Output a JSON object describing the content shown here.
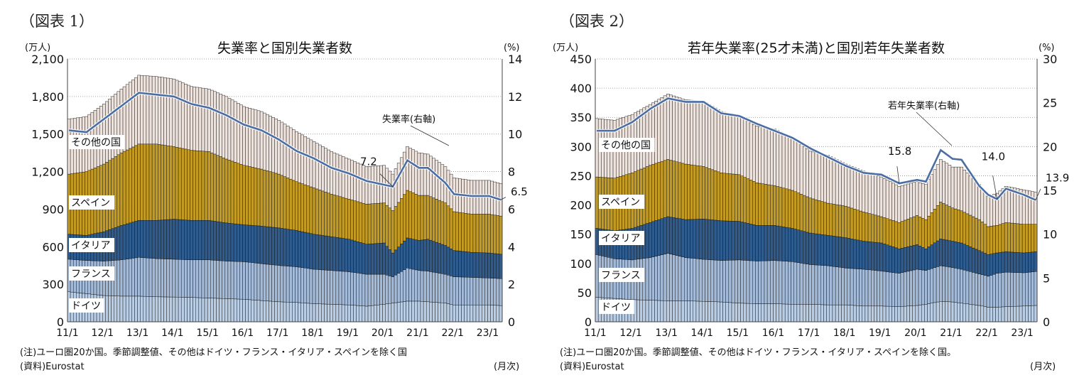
{
  "figures": [
    {
      "label": "（図表 1）",
      "note": "(注)ユーロ圏20か国。季節調整値、その他はドイツ・フランス・イタリア・スペインを除く国",
      "source": "(資料)Eurostat",
      "unit_x": "(月次)"
    },
    {
      "label": "（図表 2）",
      "note": "(注)ユーロ圏20か国。季節調整値、その他はドイツ・フランス・イタリア・スペインを除く国。",
      "source": "(資料)Eurostat",
      "unit_x": "(月次)"
    }
  ],
  "colors": {
    "ドイツ": "#b9cde5",
    "フランス": "#a3bad8",
    "イタリア": "#2f5c8f",
    "スペイン": "#c39a22",
    "その他の国": "#eee2dc",
    "rate": "#4a6da3"
  },
  "chart_data": [
    {
      "type": "bar",
      "stacked": true,
      "title": "失業率と国別失業者数",
      "ylabel": "(万人)",
      "y2label": "(%)",
      "ylim": [
        0,
        2100
      ],
      "yticks": [
        "0",
        "300",
        "600",
        "900",
        "1,200",
        "1,500",
        "1,800",
        "2,100"
      ],
      "y2lim": [
        0,
        14
      ],
      "y2ticks": [
        "0",
        "2",
        "4",
        "6",
        "8",
        "10",
        "12",
        "14"
      ],
      "xticks": [
        "11/1",
        "12/1",
        "13/1",
        "14/1",
        "15/1",
        "16/1",
        "17/1",
        "18/1",
        "19/1",
        "20/1",
        "21/1",
        "22/1",
        "23/1"
      ],
      "series_names": [
        "ドイツ",
        "フランス",
        "イタリア",
        "スペイン",
        "その他の国"
      ],
      "line_name": "失業率(右軸)",
      "annotations": [
        "7.2",
        "6.5"
      ],
      "x": [
        "2011-01",
        "2011-07",
        "2012-01",
        "2012-07",
        "2013-01",
        "2013-07",
        "2014-01",
        "2014-07",
        "2015-01",
        "2015-07",
        "2016-01",
        "2016-07",
        "2017-01",
        "2017-07",
        "2018-01",
        "2018-07",
        "2019-01",
        "2019-07",
        "2020-01",
        "2020-04",
        "2020-09",
        "2021-01",
        "2021-04",
        "2021-10",
        "2022-01",
        "2022-07",
        "2023-01",
        "2023-05"
      ],
      "series": [
        {
          "name": "ドイツ",
          "values": [
            240,
            225,
            210,
            205,
            205,
            200,
            198,
            195,
            190,
            185,
            180,
            170,
            160,
            155,
            145,
            140,
            135,
            125,
            140,
            150,
            165,
            165,
            160,
            150,
            135,
            135,
            135,
            130
          ]
        },
        {
          "name": "フランス",
          "values": [
            260,
            265,
            275,
            290,
            310,
            305,
            302,
            300,
            305,
            300,
            300,
            295,
            290,
            285,
            275,
            270,
            265,
            255,
            240,
            210,
            265,
            245,
            245,
            230,
            225,
            220,
            215,
            215
          ]
        },
        {
          "name": "イタリア",
          "values": [
            200,
            200,
            235,
            275,
            295,
            305,
            320,
            315,
            315,
            305,
            295,
            300,
            300,
            290,
            280,
            270,
            260,
            240,
            250,
            190,
            240,
            240,
            255,
            230,
            210,
            200,
            200,
            195
          ]
        },
        {
          "name": "スペイン",
          "values": [
            480,
            510,
            540,
            580,
            610,
            610,
            580,
            560,
            550,
            510,
            475,
            455,
            430,
            390,
            370,
            340,
            320,
            320,
            320,
            340,
            380,
            360,
            350,
            340,
            310,
            305,
            310,
            305
          ]
        },
        {
          "name": "その他の国",
          "values": [
            440,
            440,
            480,
            510,
            550,
            540,
            540,
            510,
            500,
            500,
            470,
            460,
            430,
            400,
            370,
            340,
            320,
            300,
            300,
            290,
            350,
            340,
            330,
            290,
            270,
            270,
            270,
            260
          ]
        }
      ],
      "line": {
        "name": "失業率(右軸)",
        "values": [
          10.2,
          10.1,
          10.8,
          11.5,
          12.2,
          12.1,
          12.0,
          11.6,
          11.4,
          11.0,
          10.5,
          10.2,
          9.7,
          9.1,
          8.7,
          8.2,
          7.9,
          7.5,
          7.3,
          7.2,
          8.6,
          8.2,
          8.2,
          7.4,
          6.8,
          6.7,
          6.7,
          6.5
        ]
      }
    },
    {
      "type": "bar",
      "stacked": true,
      "title": "若年失業率(25才未満)と国別若年失業者数",
      "ylabel": "(万人)",
      "y2label": "(%)",
      "ylim": [
        0,
        450
      ],
      "yticks": [
        "0",
        "50",
        "100",
        "150",
        "200",
        "250",
        "300",
        "350",
        "400",
        "450"
      ],
      "y2lim": [
        0,
        30
      ],
      "y2ticks": [
        "0",
        "5",
        "10",
        "15",
        "20",
        "25",
        "30"
      ],
      "xticks": [
        "11/1",
        "12/1",
        "13/1",
        "14/1",
        "15/1",
        "16/1",
        "17/1",
        "18/1",
        "19/1",
        "20/1",
        "21/1",
        "22/1",
        "23/1"
      ],
      "series_names": [
        "ドイツ",
        "フランス",
        "イタリア",
        "スペイン",
        "その他の国"
      ],
      "line_name": "若年失業率(右軸)",
      "annotations": [
        "15.8",
        "14.0",
        "13.9"
      ],
      "x": [
        "2011-01",
        "2011-07",
        "2012-01",
        "2012-07",
        "2013-01",
        "2013-07",
        "2014-01",
        "2014-07",
        "2015-01",
        "2015-07",
        "2016-01",
        "2016-07",
        "2017-01",
        "2017-07",
        "2018-01",
        "2018-07",
        "2019-01",
        "2019-07",
        "2020-01",
        "2020-04",
        "2020-09",
        "2021-01",
        "2021-04",
        "2021-10",
        "2022-01",
        "2022-04",
        "2022-07",
        "2023-01",
        "2023-05"
      ],
      "series": [
        {
          "name": "ドイツ",
          "values": [
            42,
            40,
            38,
            37,
            36,
            36,
            35,
            34,
            32,
            31,
            31,
            30,
            30,
            29,
            29,
            27,
            27,
            26,
            28,
            30,
            35,
            34,
            32,
            28,
            25,
            25,
            26,
            27,
            28
          ]
        },
        {
          "name": "フランス",
          "values": [
            73,
            68,
            68,
            73,
            81,
            74,
            72,
            71,
            74,
            73,
            74,
            73,
            68,
            67,
            63,
            63,
            60,
            57,
            62,
            58,
            61,
            59,
            58,
            54,
            53,
            58,
            59,
            57,
            58
          ]
        },
        {
          "name": "イタリア",
          "values": [
            45,
            48,
            54,
            60,
            63,
            65,
            69,
            68,
            66,
            61,
            60,
            57,
            54,
            52,
            52,
            48,
            48,
            42,
            42,
            37,
            46,
            45,
            45,
            40,
            37,
            35,
            35,
            34,
            34
          ]
        },
        {
          "name": "スペイン",
          "values": [
            88,
            90,
            95,
            98,
            98,
            95,
            90,
            82,
            80,
            73,
            68,
            65,
            60,
            55,
            54,
            50,
            45,
            45,
            50,
            50,
            63,
            57,
            55,
            53,
            48,
            47,
            50,
            49,
            47
          ]
        },
        {
          "name": "その他の国",
          "values": [
            100,
            99,
            100,
            104,
            112,
            110,
            112,
            105,
            100,
            97,
            97,
            90,
            80,
            82,
            72,
            70,
            68,
            62,
            58,
            60,
            73,
            70,
            75,
            60,
            52,
            55,
            62,
            59,
            55
          ]
        }
      ],
      "line": {
        "name": "若年失業率(右軸)",
        "values": [
          21.8,
          21.8,
          22.8,
          24.3,
          25.5,
          25.1,
          25.1,
          23.8,
          23.5,
          22.6,
          21.8,
          21.0,
          19.8,
          18.8,
          17.8,
          17.0,
          16.8,
          15.8,
          16.2,
          16.0,
          19.6,
          18.6,
          18.5,
          15.5,
          14.5,
          14.0,
          15.2,
          14.5,
          13.9
        ]
      }
    }
  ]
}
